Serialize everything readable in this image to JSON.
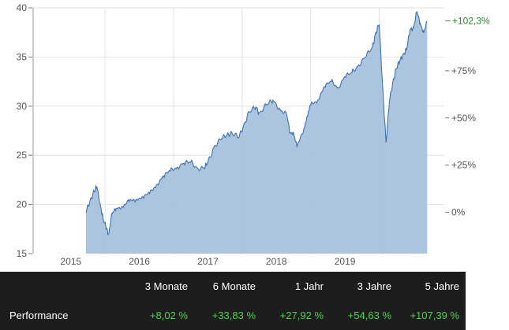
{
  "chart_data": {
    "type": "area",
    "x_ticks": [
      "2015",
      "2016",
      "2017",
      "2018",
      "2019"
    ],
    "y_ticks_left": [
      15,
      20,
      25,
      30,
      35,
      40
    ],
    "y_ticks_right": [
      "0%",
      "+25%",
      "+50%",
      "+75%"
    ],
    "current_value_label": "+102,3%",
    "ylim": [
      15,
      40
    ],
    "xlim": [
      2014.45,
      2020.45
    ],
    "grid": true,
    "colors": {
      "line": "#3f72b3",
      "fill": "#a3bfdc",
      "grid": "#e2e2e2",
      "current": "#2a8a2a"
    },
    "series": [
      {
        "x": [
          2015.22,
          2015.28,
          2015.34,
          2015.38,
          2015.43,
          2015.47,
          2015.52,
          2015.55,
          2015.6,
          2015.66,
          2015.75,
          2015.85,
          2015.95,
          2016.05,
          2016.15,
          2016.25,
          2016.35,
          2016.45,
          2016.55,
          2016.65,
          2016.75,
          2016.85,
          2016.95,
          2017.0,
          2017.1,
          2017.2,
          2017.28,
          2017.35,
          2017.45,
          2017.52,
          2017.6,
          2017.7,
          2017.75,
          2017.85,
          2017.95,
          2018.05,
          2018.15,
          2018.2,
          2018.25,
          2018.3,
          2018.4,
          2018.45,
          2018.5,
          2018.6,
          2018.7,
          2018.8,
          2018.9,
          2019.0,
          2019.1,
          2019.2,
          2019.3,
          2019.4,
          2019.45,
          2019.5,
          2019.55,
          2019.6,
          2019.65,
          2019.7,
          2019.75,
          2019.8,
          2019.85,
          2019.9,
          2019.95,
          2020.0,
          2020.05,
          2020.1,
          2020.15,
          2020.2
        ],
        "y": [
          19.2,
          20.4,
          21.3,
          21.8,
          20.0,
          18.5,
          17.6,
          17.0,
          19.0,
          19.6,
          19.8,
          20.3,
          20.5,
          20.8,
          21.1,
          22.0,
          22.9,
          23.4,
          23.8,
          24.2,
          24.3,
          23.7,
          23.7,
          24.3,
          26.0,
          26.7,
          27.1,
          27.3,
          26.8,
          28.0,
          29.4,
          29.9,
          29.3,
          30.1,
          30.6,
          29.7,
          29.1,
          27.3,
          27.3,
          25.8,
          27.7,
          29.0,
          30.1,
          30.6,
          32.0,
          32.5,
          31.9,
          33.0,
          33.4,
          34.2,
          35.0,
          36.0,
          37.5,
          38.3,
          32.0,
          26.3,
          30.5,
          32.5,
          33.8,
          34.6,
          35.3,
          35.7,
          37.8,
          38.0,
          39.6,
          38.4,
          37.5,
          38.6
        ]
      }
    ]
  },
  "performance": {
    "row_label": "Performance",
    "headers": [
      "3 Monate",
      "6 Monate",
      "1 Jahr",
      "3 Jahre",
      "5 Jahre"
    ],
    "values": [
      "+8,02 %",
      "+33,83 %",
      "+27,92 %",
      "+54,63 %",
      "+107,39 %"
    ]
  }
}
